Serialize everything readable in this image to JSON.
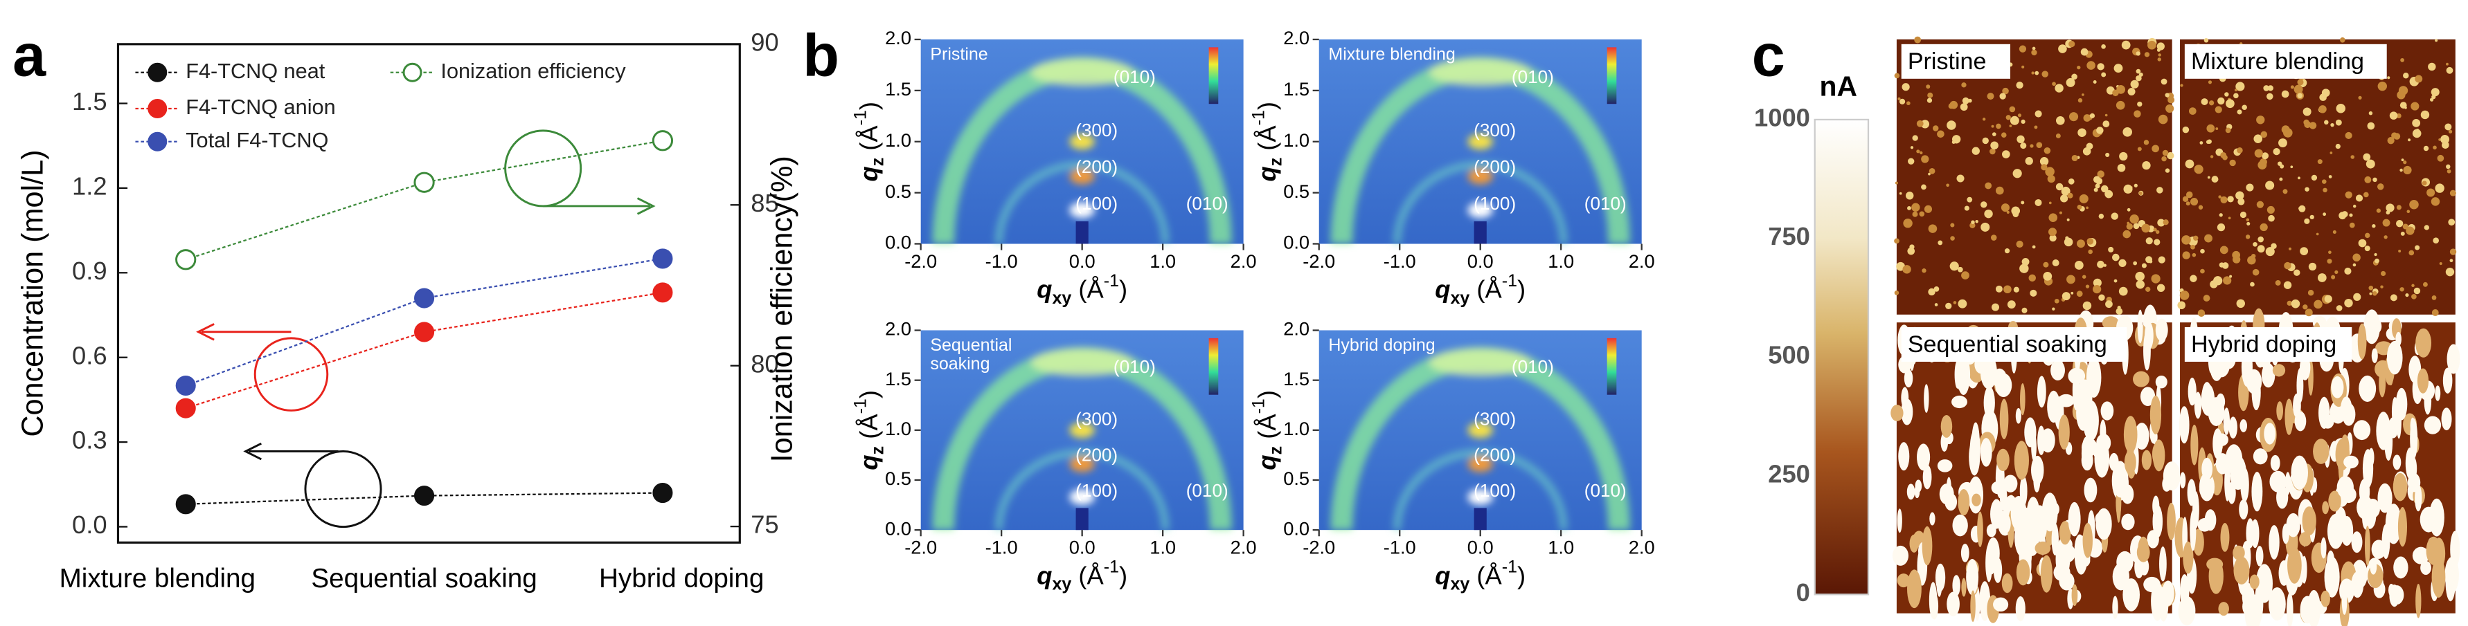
{
  "panel_labels": [
    "a",
    "b",
    "c"
  ],
  "chart_data": {
    "type": "line",
    "categories": [
      "Mixture blending",
      "Sequential soaking",
      "Hybrid doping"
    ],
    "ylabel": "Concentration (mol/L)",
    "y2label": "Ionization efficiency(%)",
    "ylim": [
      -0.056,
      1.71
    ],
    "yticks": [
      {
        "value": 0,
        "label": "0.0"
      },
      0.3,
      0.6,
      0.9,
      1.2,
      1.5
    ],
    "y2lim": [
      74.5,
      90
    ],
    "y2ticks": [
      75,
      80,
      85,
      90
    ],
    "series": [
      {
        "name": "F4-TCNQ neat",
        "color": "#111111",
        "values": [
          0.08,
          0.11,
          0.12
        ]
      },
      {
        "name": "F4-TCNQ anion",
        "color": "#e8231c",
        "values": [
          0.42,
          0.69,
          0.83
        ]
      },
      {
        "name": "Total F4-TCNQ",
        "color": "#3a4fb0",
        "values": [
          0.5,
          0.81,
          0.95
        ]
      },
      {
        "name": "Ionization efficiency",
        "color": "#3c8a3a",
        "axis": "y2",
        "hollow": true,
        "values": [
          83.3,
          85.7,
          87.0
        ]
      }
    ]
  },
  "giwaxs": {
    "xlabel": {
      "symbol": "q",
      "sub": "xy",
      "open": " (Å",
      "sup": "-1",
      "close": ")"
    },
    "ylabel": {
      "symbol": "q",
      "sub": "z",
      "open": " (Å",
      "sup": "-1",
      "close": ")"
    },
    "xticks": [
      "-2.0",
      "-1.0",
      "0.0",
      "1.0",
      "2.0"
    ],
    "yticks": [
      "0.0",
      "0.5",
      "1.0",
      "1.5",
      "2.0"
    ],
    "panels": [
      {
        "title": [
          "Pristine"
        ],
        "peaks": [
          "(010)",
          "(300)",
          "(200)",
          "(100)",
          "(010)"
        ]
      },
      {
        "title": [
          "Mixture blending"
        ],
        "peaks": [
          "(010)",
          "(300)",
          "(200)",
          "(100)",
          "(010)"
        ]
      },
      {
        "title": [
          "Sequential",
          "soaking"
        ],
        "peaks": [
          "(010)",
          "(300)",
          "(200)",
          "(100)",
          "(010)"
        ]
      },
      {
        "title": [
          "Hybrid doping"
        ],
        "peaks": [
          "(010)",
          "(300)",
          "(200)",
          "(100)",
          "(010)"
        ]
      }
    ]
  },
  "afm": {
    "unit": "nA",
    "colorbar_ticks": [
      "1000",
      "750",
      "500",
      "250",
      "0"
    ],
    "images": [
      "Pristine",
      "Mixture blending",
      "Sequential soaking",
      "Hybrid doping"
    ]
  }
}
